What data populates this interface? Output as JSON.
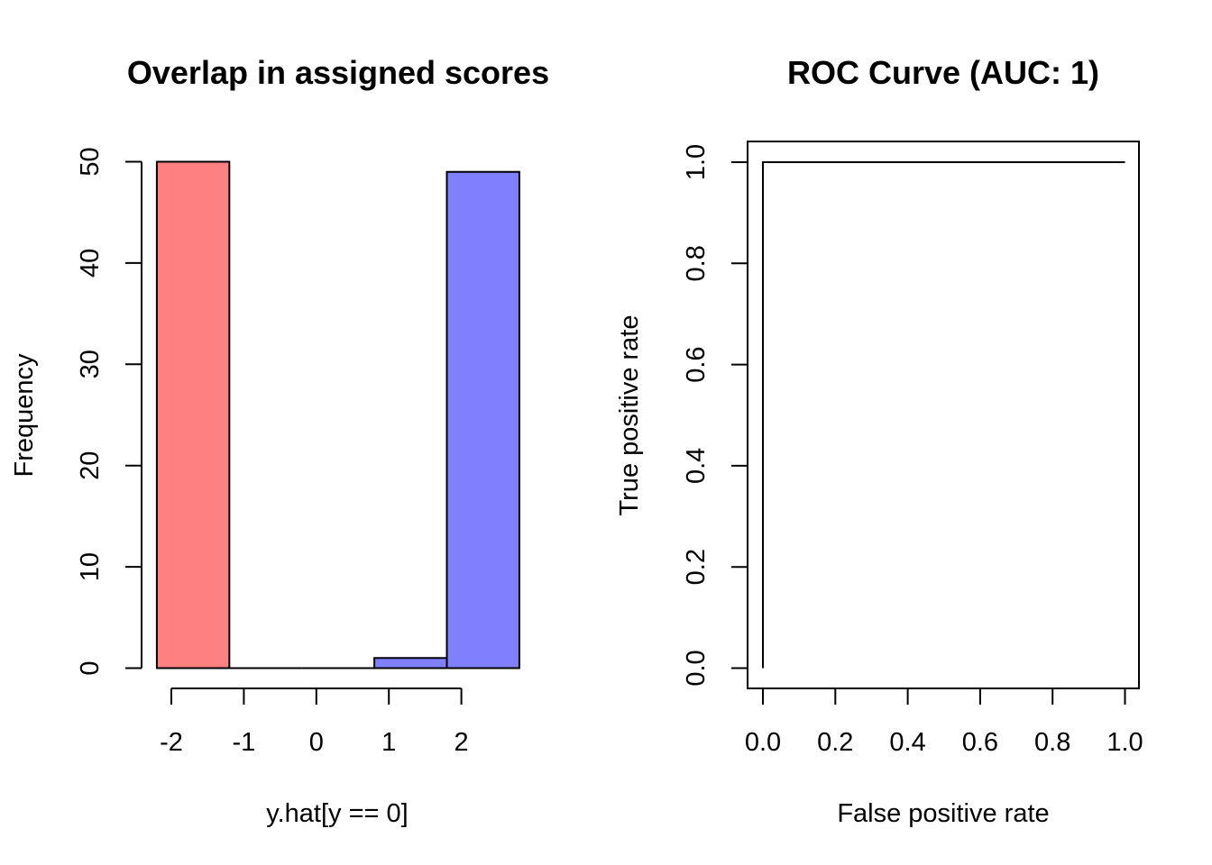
{
  "chart_data": [
    {
      "type": "bar",
      "title": "Overlap in assigned scores",
      "xlabel": "y.hat[y == 0]",
      "ylabel": "Frequency",
      "xlim": [
        -2.2,
        2.8
      ],
      "ylim": [
        0,
        50
      ],
      "x_ticks": [
        "-2",
        "-1",
        "0",
        "1",
        "2"
      ],
      "y_ticks": [
        "0",
        "10",
        "20",
        "30",
        "40",
        "50"
      ],
      "series": [
        {
          "color": "#ff8080",
          "bins": [
            {
              "x0": -2.2,
              "x1": -1.2,
              "value": 50
            }
          ]
        },
        {
          "color": "#ffffff",
          "bins": [
            {
              "x0": -1.2,
              "x1": -0.2,
              "value": 0
            },
            {
              "x0": -0.2,
              "x1": 0.8,
              "value": 0
            }
          ]
        },
        {
          "color": "#8080ff",
          "bins": [
            {
              "x0": 0.8,
              "x1": 1.8,
              "value": 1
            },
            {
              "x0": 1.8,
              "x1": 2.8,
              "value": 49
            }
          ]
        }
      ],
      "grid": false
    },
    {
      "type": "line",
      "title": "ROC Curve (AUC: 1)",
      "xlabel": "False positive rate",
      "ylabel": "True positive rate",
      "xlim": [
        0,
        1
      ],
      "ylim": [
        0,
        1
      ],
      "x_ticks": [
        "0.0",
        "0.2",
        "0.4",
        "0.6",
        "0.8",
        "1.0"
      ],
      "y_ticks": [
        "0.0",
        "0.2",
        "0.4",
        "0.6",
        "0.8",
        "1.0"
      ],
      "series": [
        {
          "color": "#000000",
          "points": [
            [
              0,
              0
            ],
            [
              0,
              1
            ],
            [
              1,
              1
            ]
          ]
        }
      ],
      "grid": false
    }
  ]
}
